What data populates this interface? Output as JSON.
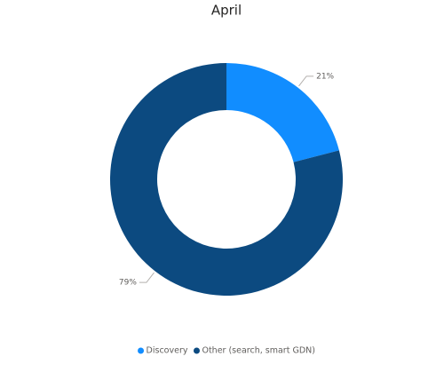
{
  "chart_data": {
    "type": "donut",
    "title": "April",
    "categories": [
      "Discovery",
      "Other (search, smart GDN)"
    ],
    "values": [
      21,
      79
    ],
    "value_labels": [
      "21%",
      "79%"
    ],
    "colors": [
      "#118dff",
      "#0c4a80"
    ],
    "legend": "bottom"
  }
}
